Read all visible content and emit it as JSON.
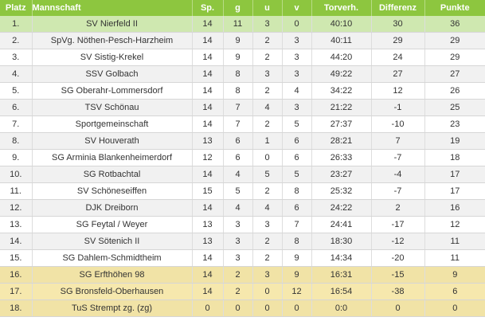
{
  "headers": {
    "platz": "Platz",
    "mannschaft": "Mannschaft",
    "sp": "Sp.",
    "g": "g",
    "u": "u",
    "v": "v",
    "torverh": "Torverh.",
    "differenz": "Differenz",
    "punkte": "Punkte"
  },
  "colors": {
    "header_bg": "#8dc63f",
    "promotion_row": "#cfe8b0",
    "relegation_row": "#f6e8ad",
    "alt_row": "#f1f1f1"
  },
  "rows": [
    {
      "platz": "1.",
      "team": "SV Nierfeld II",
      "sp": "14",
      "g": "11",
      "u": "3",
      "v": "0",
      "tore": "40:10",
      "diff": "30",
      "pkt": "36",
      "zone": "promo"
    },
    {
      "platz": "2.",
      "team": "SpVg. Nöthen-Pesch-Harzheim",
      "sp": "14",
      "g": "9",
      "u": "2",
      "v": "3",
      "tore": "40:11",
      "diff": "29",
      "pkt": "29",
      "zone": ""
    },
    {
      "platz": "3.",
      "team": "SV Sistig-Krekel",
      "sp": "14",
      "g": "9",
      "u": "2",
      "v": "3",
      "tore": "44:20",
      "diff": "24",
      "pkt": "29",
      "zone": ""
    },
    {
      "platz": "4.",
      "team": "SSV Golbach",
      "sp": "14",
      "g": "8",
      "u": "3",
      "v": "3",
      "tore": "49:22",
      "diff": "27",
      "pkt": "27",
      "zone": ""
    },
    {
      "platz": "5.",
      "team": "SG Oberahr-Lommersdorf",
      "sp": "14",
      "g": "8",
      "u": "2",
      "v": "4",
      "tore": "34:22",
      "diff": "12",
      "pkt": "26",
      "zone": ""
    },
    {
      "platz": "6.",
      "team": "TSV Schönau",
      "sp": "14",
      "g": "7",
      "u": "4",
      "v": "3",
      "tore": "21:22",
      "diff": "-1",
      "pkt": "25",
      "zone": ""
    },
    {
      "platz": "7.",
      "team": "Sportgemeinschaft",
      "sp": "14",
      "g": "7",
      "u": "2",
      "v": "5",
      "tore": "27:37",
      "diff": "-10",
      "pkt": "23",
      "zone": ""
    },
    {
      "platz": "8.",
      "team": "SV Houverath",
      "sp": "13",
      "g": "6",
      "u": "1",
      "v": "6",
      "tore": "28:21",
      "diff": "7",
      "pkt": "19",
      "zone": ""
    },
    {
      "platz": "9.",
      "team": "SG Arminia Blankenheimerdorf",
      "sp": "12",
      "g": "6",
      "u": "0",
      "v": "6",
      "tore": "26:33",
      "diff": "-7",
      "pkt": "18",
      "zone": ""
    },
    {
      "platz": "10.",
      "team": "SG Rotbachtal",
      "sp": "14",
      "g": "4",
      "u": "5",
      "v": "5",
      "tore": "23:27",
      "diff": "-4",
      "pkt": "17",
      "zone": ""
    },
    {
      "platz": "11.",
      "team": "SV Schöneseiffen",
      "sp": "15",
      "g": "5",
      "u": "2",
      "v": "8",
      "tore": "25:32",
      "diff": "-7",
      "pkt": "17",
      "zone": ""
    },
    {
      "platz": "12.",
      "team": "DJK Dreiborn",
      "sp": "14",
      "g": "4",
      "u": "4",
      "v": "6",
      "tore": "24:22",
      "diff": "2",
      "pkt": "16",
      "zone": ""
    },
    {
      "platz": "13.",
      "team": "SG Feytal / Weyer",
      "sp": "13",
      "g": "3",
      "u": "3",
      "v": "7",
      "tore": "24:41",
      "diff": "-17",
      "pkt": "12",
      "zone": ""
    },
    {
      "platz": "14.",
      "team": "SV Sötenich II",
      "sp": "13",
      "g": "3",
      "u": "2",
      "v": "8",
      "tore": "18:30",
      "diff": "-12",
      "pkt": "11",
      "zone": ""
    },
    {
      "platz": "15.",
      "team": "SG Dahlem-Schmidtheim",
      "sp": "14",
      "g": "3",
      "u": "2",
      "v": "9",
      "tore": "14:34",
      "diff": "-20",
      "pkt": "11",
      "zone": ""
    },
    {
      "platz": "16.",
      "team": "SG Erfthöhen 98",
      "sp": "14",
      "g": "2",
      "u": "3",
      "v": "9",
      "tore": "16:31",
      "diff": "-15",
      "pkt": "9",
      "zone": "releg"
    },
    {
      "platz": "17.",
      "team": "SG Bronsfeld-Oberhausen",
      "sp": "14",
      "g": "2",
      "u": "0",
      "v": "12",
      "tore": "16:54",
      "diff": "-38",
      "pkt": "6",
      "zone": "releg"
    },
    {
      "platz": "18.",
      "team": "TuS Strempt zg. (zg)",
      "sp": "0",
      "g": "0",
      "u": "0",
      "v": "0",
      "tore": "0:0",
      "diff": "0",
      "pkt": "0",
      "zone": "releg"
    }
  ]
}
